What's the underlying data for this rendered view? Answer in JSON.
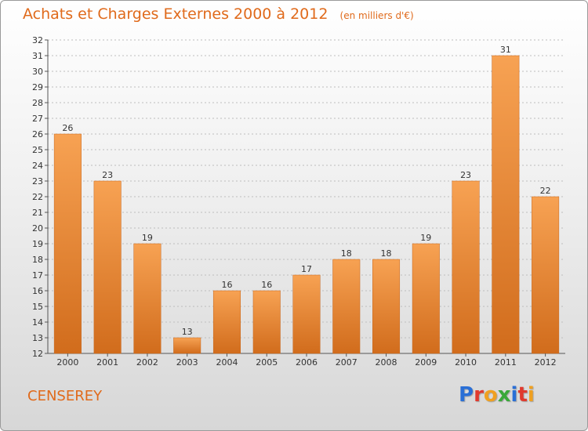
{
  "header": {
    "title": "Achats et Charges Externes 2000 à 2012",
    "unit_note": "(en milliers d'€)"
  },
  "footer": {
    "commune": "CENSEREY",
    "brand": "Proxiti"
  },
  "colors": {
    "bar_light": "#f7a253",
    "bar_dark": "#d16c1c",
    "title": "#e06a1b",
    "brand_letters": [
      "#2a6fd6",
      "#e03a2e",
      "#f0a020",
      "#3aa83a",
      "#2a6fd6",
      "#e03a2e",
      "#f0a020"
    ]
  },
  "chart_data": {
    "type": "bar",
    "title": "Achats et Charges Externes 2000 à 2012",
    "subtitle": "(en milliers d'€)",
    "categories": [
      "2000",
      "2001",
      "2002",
      "2003",
      "2004",
      "2005",
      "2006",
      "2007",
      "2008",
      "2009",
      "2010",
      "2011",
      "2012"
    ],
    "values": [
      26,
      23,
      19,
      13,
      16,
      16,
      17,
      18,
      18,
      19,
      23,
      31,
      22
    ],
    "ylim": [
      12,
      32
    ],
    "yticks": [
      12,
      13,
      14,
      15,
      16,
      17,
      18,
      19,
      20,
      21,
      22,
      23,
      24,
      25,
      26,
      27,
      28,
      29,
      30,
      31,
      32
    ],
    "grid": "horizontal",
    "xlabel": "",
    "ylabel": "",
    "data_labels": true
  }
}
